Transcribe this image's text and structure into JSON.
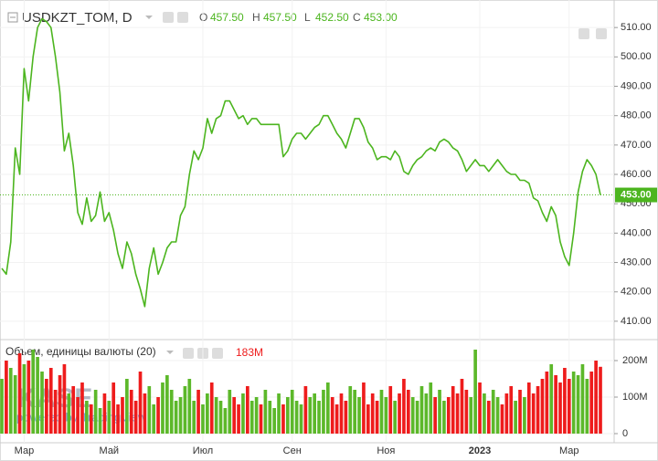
{
  "chart_data": {
    "type": "line",
    "title": "USDKZT_TOM, D",
    "ohlc": [
      {
        "name": "O",
        "value": "457.50"
      },
      {
        "name": "H",
        "value": "457.50"
      },
      {
        "name": "L",
        "value": "452.50"
      },
      {
        "name": "C",
        "value": "453.00"
      }
    ],
    "categories": [
      null,
      null,
      null,
      null,
      null,
      "Мар",
      null,
      null,
      null,
      null,
      null,
      null,
      null,
      null,
      null,
      null,
      null,
      null,
      null,
      null,
      null,
      null,
      null,
      null,
      "Май",
      null,
      null,
      null,
      null,
      null,
      null,
      null,
      null,
      null,
      null,
      null,
      null,
      null,
      null,
      null,
      null,
      null,
      null,
      null,
      null,
      "Июл",
      null,
      null,
      null,
      null,
      null,
      null,
      null,
      null,
      null,
      null,
      null,
      null,
      null,
      null,
      null,
      null,
      null,
      null,
      null,
      "Сен",
      null,
      null,
      null,
      null,
      null,
      null,
      null,
      null,
      null,
      null,
      null,
      null,
      null,
      null,
      null,
      null,
      null,
      null,
      null,
      null,
      "Ноя",
      null,
      null,
      null,
      null,
      null,
      null,
      null,
      null,
      null,
      null,
      null,
      null,
      null,
      null,
      null,
      null,
      null,
      null,
      null,
      null,
      "2023",
      null,
      null,
      null,
      null,
      null,
      null,
      null,
      null,
      null,
      null,
      null,
      null,
      null,
      null,
      null,
      null,
      null,
      null,
      null,
      "Мар",
      null,
      null,
      null,
      null,
      null,
      null,
      null
    ],
    "color": "#4cb51f",
    "values": [
      428,
      426,
      437,
      469,
      460,
      496,
      485,
      500,
      510,
      513,
      512,
      510,
      500,
      488,
      468,
      474,
      463,
      447,
      443,
      452,
      444,
      446,
      454,
      444,
      447,
      441,
      433,
      428,
      437,
      433,
      426,
      421,
      415,
      428,
      435,
      426,
      430,
      435,
      437,
      437,
      446,
      449,
      460,
      468,
      465,
      469,
      479,
      474,
      479,
      480,
      485,
      485,
      482,
      479,
      480,
      477,
      479,
      479,
      477,
      477,
      477,
      477,
      477,
      466,
      468,
      472,
      474,
      474,
      472,
      474,
      476,
      477,
      480,
      480,
      477,
      474,
      472,
      469,
      474,
      479,
      479,
      476,
      471,
      469,
      465,
      466,
      466,
      465,
      468,
      466,
      461,
      460,
      463,
      465,
      466,
      468,
      469,
      468,
      471,
      472,
      471,
      469,
      468,
      465,
      461,
      463,
      465,
      463,
      463,
      461,
      463,
      465,
      463,
      461,
      460,
      460,
      458,
      458,
      457,
      452,
      451,
      447,
      444,
      449,
      446,
      437,
      432,
      429,
      440,
      454,
      461,
      465,
      463,
      460,
      453
    ],
    "ylim": [
      403.75,
      519.375
    ],
    "yticks": [
      {
        "value": 510,
        "label": "510.00"
      },
      {
        "value": 500,
        "label": "500.00"
      },
      {
        "value": 490,
        "label": "490.00"
      },
      {
        "value": 480,
        "label": "480.00"
      },
      {
        "value": 470,
        "label": "470.00"
      },
      {
        "value": 460,
        "label": "460.00"
      },
      {
        "value": 450,
        "label": "450.00"
      },
      {
        "value": 440,
        "label": "440.00"
      },
      {
        "value": 430,
        "label": "430.00"
      },
      {
        "value": 420,
        "label": "420.00"
      },
      {
        "value": 410,
        "label": "410.00"
      }
    ],
    "grid": true,
    "volume": {
      "title": "Объем, единицы валюты (20)",
      "last_label": "183M",
      "up_color": "#5cb82a",
      "down_color": "#ee1c1c",
      "values": [
        150,
        200,
        180,
        160,
        220,
        190,
        200,
        230,
        210,
        170,
        150,
        180,
        120,
        160,
        190,
        110,
        130,
        100,
        140,
        90,
        80,
        120,
        70,
        110,
        90,
        140,
        80,
        100,
        150,
        120,
        90,
        170,
        110,
        130,
        80,
        100,
        140,
        160,
        120,
        90,
        100,
        130,
        150,
        90,
        120,
        80,
        110,
        140,
        100,
        90,
        70,
        120,
        100,
        80,
        110,
        130,
        90,
        100,
        80,
        120,
        90,
        70,
        110,
        80,
        100,
        120,
        90,
        80,
        130,
        100,
        110,
        90,
        120,
        140,
        100,
        80,
        110,
        90,
        130,
        120,
        100,
        140,
        80,
        110,
        90,
        120,
        100,
        130,
        90,
        110,
        150,
        120,
        100,
        90,
        130,
        110,
        140,
        100,
        120,
        90,
        100,
        130,
        110,
        150,
        120,
        100,
        230,
        140,
        110,
        90,
        120,
        100,
        80,
        110,
        130,
        90,
        120,
        100,
        140,
        110,
        130,
        150,
        170,
        190,
        160,
        140,
        180,
        150,
        170,
        160,
        190,
        150,
        170,
        200,
        183
      ],
      "ylim": [
        0,
        250
      ],
      "yticks": [
        {
          "value": 200,
          "label": "200M"
        },
        {
          "value": 100,
          "label": "100M"
        },
        0
      ]
    },
    "watermark": {
      "logo": "KASE",
      "text": "powered by TradingView"
    }
  }
}
